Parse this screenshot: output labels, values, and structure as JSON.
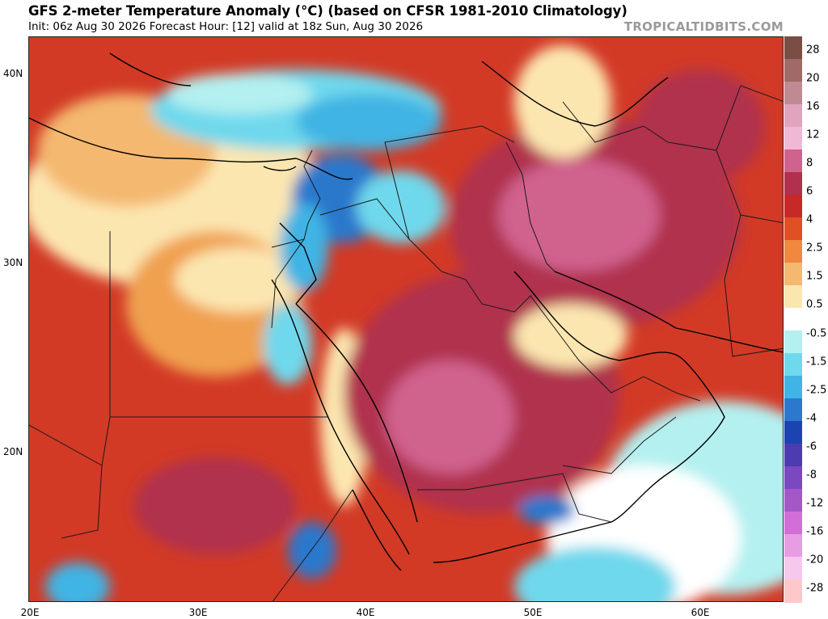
{
  "header": {
    "title": "GFS 2-meter Temperature Anomaly (°C) (based on CFSR 1981-2010 Climatology)",
    "subtitle": "Init: 06z Aug 30 2026   Forecast Hour: [12]   valid at 18z Sun, Aug 30 2026",
    "watermark": "TROPICALTIDBITS.COM"
  },
  "map": {
    "lon_range": [
      20,
      65
    ],
    "lat_range": [
      12,
      42
    ],
    "lat_labels": [
      "40N",
      "30N",
      "20N"
    ],
    "lon_labels": [
      "20E",
      "30E",
      "40E",
      "50E",
      "60E"
    ]
  },
  "colorbar": {
    "labels": [
      "28",
      "20",
      "16",
      "12",
      "8",
      "6",
      "4",
      "2.5",
      "1.5",
      "0.5",
      "-0.5",
      "-1.5",
      "-2.5",
      "-4",
      "-6",
      "-8",
      "-12",
      "-16",
      "-20",
      "-28"
    ],
    "colors": [
      "#7a4e44",
      "#a06a68",
      "#c08a92",
      "#e0a4be",
      "#f0b8d4",
      "#d0628e",
      "#b0304e",
      "#c82828",
      "#e05024",
      "#f08840",
      "#f4b870",
      "#fce6b0",
      "#ffffff",
      "#b4f0f0",
      "#70d8ec",
      "#40b4e4",
      "#2c78cc",
      "#1c44b0",
      "#4c3cb0",
      "#7a48c0",
      "#a458c8",
      "#d26ed8",
      "#e89ce2",
      "#f6c8ee",
      "#ffc8c8"
    ]
  }
}
